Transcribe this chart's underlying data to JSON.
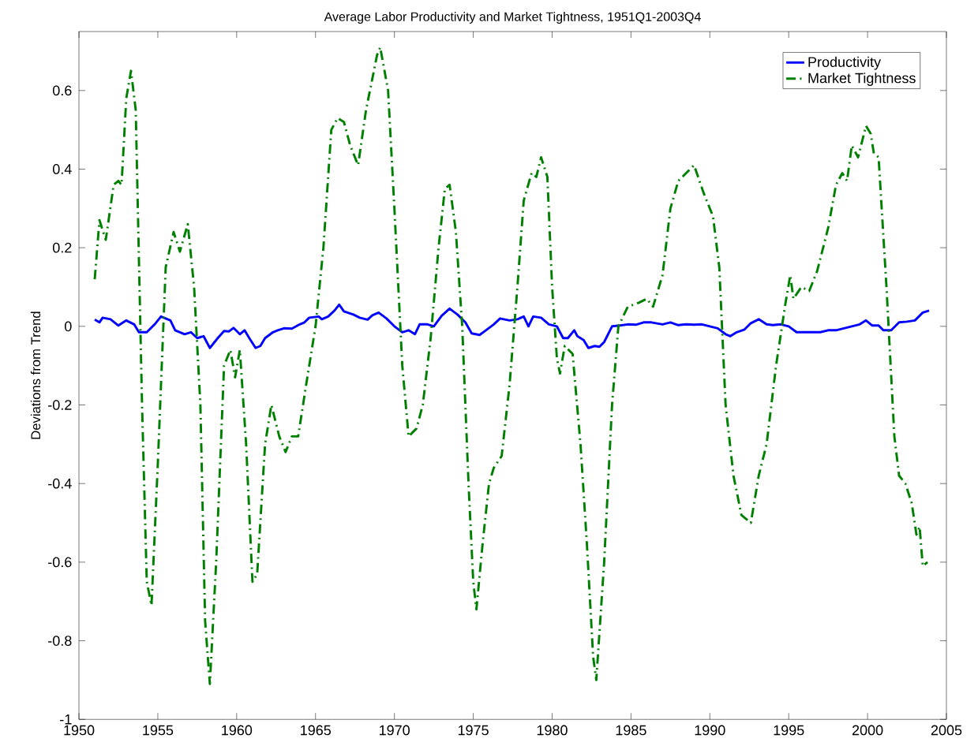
{
  "chart_data": {
    "type": "line",
    "title": "Average Labor Productivity and Market Tightness, 1951Q1-2003Q4",
    "ylabel": "Deviations from Trend",
    "xlim": [
      1950,
      2005
    ],
    "xticks": [
      1950,
      1955,
      1960,
      1965,
      1970,
      1975,
      1980,
      1985,
      1990,
      1995,
      2000,
      2005
    ],
    "ylim": [
      -1,
      0.75
    ],
    "yticks": [
      -1,
      -0.8,
      -0.6,
      -0.4,
      -0.2,
      0,
      0.2,
      0.4,
      0.6
    ],
    "grid": false,
    "legend": "top right",
    "series": [
      {
        "name": "Productivity",
        "color": "#0000ff",
        "line_style": "solid",
        "x": [
          1951.0,
          1951.3,
          1951.5,
          1952.0,
          1952.5,
          1953.0,
          1953.5,
          1953.8,
          1954.3,
          1954.8,
          1955.2,
          1955.8,
          1956.1,
          1956.7,
          1957.1,
          1957.5,
          1957.9,
          1958.3,
          1958.8,
          1959.2,
          1959.5,
          1959.8,
          1960.2,
          1960.5,
          1960.8,
          1961.2,
          1961.5,
          1961.8,
          1962.3,
          1962.6,
          1963.0,
          1963.5,
          1964.0,
          1964.3,
          1964.6,
          1965.2,
          1965.4,
          1965.8,
          1966.2,
          1966.5,
          1966.8,
          1967.4,
          1967.8,
          1968.3,
          1968.6,
          1969.0,
          1969.5,
          1970.0,
          1970.5,
          1970.9,
          1971.3,
          1971.6,
          1972.1,
          1972.5,
          1973.0,
          1973.5,
          1974.0,
          1974.5,
          1974.9,
          1975.4,
          1975.8,
          1976.3,
          1976.7,
          1977.3,
          1977.8,
          1978.2,
          1978.5,
          1978.8,
          1979.3,
          1979.8,
          1980.3,
          1980.7,
          1981.0,
          1981.4,
          1981.6,
          1982.0,
          1982.3,
          1982.7,
          1983.0,
          1983.3,
          1983.8,
          1984.3,
          1984.8,
          1985.3,
          1985.8,
          1986.3,
          1987.0,
          1987.5,
          1988.0,
          1988.5,
          1989.0,
          1989.5,
          1990.0,
          1990.5,
          1991.0,
          1991.3,
          1991.7,
          1992.2,
          1992.6,
          1993.1,
          1993.6,
          1994.0,
          1994.5,
          1995.0,
          1995.5,
          1996.0,
          1996.5,
          1997.0,
          1997.5,
          1998.0,
          1998.5,
          1999.0,
          1999.5,
          1999.9,
          2000.3,
          2000.7,
          2001.0,
          2001.5,
          2002.0,
          2002.5,
          2003.0,
          2003.5,
          2003.9
        ],
        "values": [
          0.017,
          0.01,
          0.022,
          0.018,
          0.002,
          0.015,
          0.005,
          -0.015,
          -0.015,
          0.005,
          0.025,
          0.015,
          -0.01,
          -0.02,
          -0.015,
          -0.03,
          -0.025,
          -0.055,
          -0.03,
          -0.012,
          -0.013,
          -0.004,
          -0.02,
          -0.01,
          -0.03,
          -0.055,
          -0.05,
          -0.03,
          -0.015,
          -0.01,
          -0.005,
          -0.006,
          0.005,
          0.01,
          0.022,
          0.025,
          0.018,
          0.025,
          0.04,
          0.055,
          0.038,
          0.03,
          0.022,
          0.017,
          0.028,
          0.035,
          0.02,
          0.0,
          -0.015,
          -0.01,
          -0.02,
          0.005,
          0.005,
          0.0,
          0.027,
          0.045,
          0.03,
          0.01,
          -0.018,
          -0.022,
          -0.01,
          0.005,
          0.02,
          0.015,
          0.018,
          0.025,
          0.0,
          0.025,
          0.022,
          0.005,
          0.0,
          -0.03,
          -0.03,
          -0.01,
          -0.025,
          -0.035,
          -0.055,
          -0.05,
          -0.052,
          -0.04,
          0.0,
          0.002,
          0.005,
          0.004,
          0.01,
          0.01,
          0.005,
          0.01,
          0.003,
          0.005,
          0.004,
          0.005,
          0.0,
          -0.005,
          -0.02,
          -0.025,
          -0.015,
          -0.008,
          0.008,
          0.018,
          0.005,
          0.003,
          0.005,
          0.0,
          -0.015,
          -0.015,
          -0.015,
          -0.015,
          -0.01,
          -0.01,
          -0.005,
          0.0,
          0.005,
          0.015,
          0.002,
          0.002,
          -0.01,
          -0.01,
          0.01,
          0.012,
          0.015,
          0.035,
          0.04
        ]
      },
      {
        "name": "Market Tightness",
        "color": "#008000",
        "line_style": "dashdot",
        "x": [
          1951.0,
          1951.3,
          1951.7,
          1952.2,
          1952.5,
          1952.7,
          1953.0,
          1953.3,
          1953.6,
          1954.0,
          1954.3,
          1954.6,
          1955.0,
          1955.5,
          1956.0,
          1956.4,
          1956.9,
          1957.3,
          1957.7,
          1958.0,
          1958.3,
          1958.7,
          1959.2,
          1959.6,
          1959.9,
          1960.2,
          1960.6,
          1961.0,
          1961.3,
          1961.8,
          1962.2,
          1962.7,
          1963.1,
          1963.5,
          1963.9,
          1964.4,
          1965.0,
          1965.5,
          1966.0,
          1966.4,
          1966.8,
          1967.2,
          1967.7,
          1968.2,
          1968.9,
          1969.1,
          1969.6,
          1970.0,
          1970.5,
          1970.9,
          1971.4,
          1971.8,
          1972.3,
          1972.8,
          1973.2,
          1973.5,
          1973.9,
          1974.3,
          1974.7,
          1975.0,
          1975.2,
          1975.6,
          1976.0,
          1976.3,
          1976.8,
          1977.3,
          1977.8,
          1978.2,
          1978.7,
          1979.0,
          1979.3,
          1979.7,
          1980.0,
          1980.3,
          1980.5,
          1980.8,
          1981.3,
          1981.8,
          1982.2,
          1982.6,
          1982.8,
          1983.3,
          1983.8,
          1984.2,
          1984.8,
          1985.5,
          1986.0,
          1986.4,
          1987.0,
          1987.5,
          1988.0,
          1988.5,
          1989.0,
          1989.6,
          1990.2,
          1990.6,
          1991.0,
          1991.5,
          1992.0,
          1992.6,
          1993.1,
          1993.6,
          1994.2,
          1994.8,
          1995.1,
          1995.3,
          1995.8,
          1996.3,
          1996.8,
          1997.5,
          1998.0,
          1998.4,
          1998.7,
          1999.0,
          1999.4,
          1999.9,
          2000.2,
          2000.4,
          2000.7,
          2001.2,
          2001.7,
          2002.0,
          2002.4,
          2002.8,
          2003.1,
          2003.3,
          2003.5,
          2003.8
        ],
        "values": [
          0.12,
          0.27,
          0.22,
          0.36,
          0.37,
          0.36,
          0.58,
          0.65,
          0.55,
          -0.2,
          -0.65,
          -0.71,
          -0.35,
          0.15,
          0.24,
          0.19,
          0.26,
          0.1,
          -0.2,
          -0.75,
          -0.91,
          -0.6,
          -0.1,
          -0.06,
          -0.13,
          -0.06,
          -0.3,
          -0.65,
          -0.63,
          -0.3,
          -0.2,
          -0.28,
          -0.32,
          -0.28,
          -0.28,
          -0.15,
          0.0,
          0.2,
          0.5,
          0.53,
          0.52,
          0.46,
          0.41,
          0.55,
          0.69,
          0.71,
          0.6,
          0.3,
          -0.1,
          -0.28,
          -0.26,
          -0.2,
          -0.03,
          0.2,
          0.35,
          0.36,
          0.24,
          0.0,
          -0.4,
          -0.65,
          -0.72,
          -0.55,
          -0.4,
          -0.36,
          -0.33,
          -0.15,
          0.1,
          0.32,
          0.39,
          0.38,
          0.43,
          0.38,
          0.1,
          -0.08,
          -0.12,
          -0.05,
          -0.07,
          -0.3,
          -0.55,
          -0.84,
          -0.9,
          -0.6,
          -0.2,
          0.0,
          0.05,
          0.06,
          0.07,
          0.05,
          0.13,
          0.3,
          0.37,
          0.39,
          0.41,
          0.34,
          0.28,
          0.15,
          -0.2,
          -0.38,
          -0.48,
          -0.5,
          -0.38,
          -0.3,
          -0.1,
          0.06,
          0.13,
          0.07,
          0.1,
          0.09,
          0.14,
          0.25,
          0.36,
          0.39,
          0.37,
          0.46,
          0.43,
          0.51,
          0.49,
          0.44,
          0.43,
          0.1,
          -0.28,
          -0.38,
          -0.4,
          -0.45,
          -0.53,
          -0.51,
          -0.61,
          -0.6
        ]
      }
    ]
  }
}
